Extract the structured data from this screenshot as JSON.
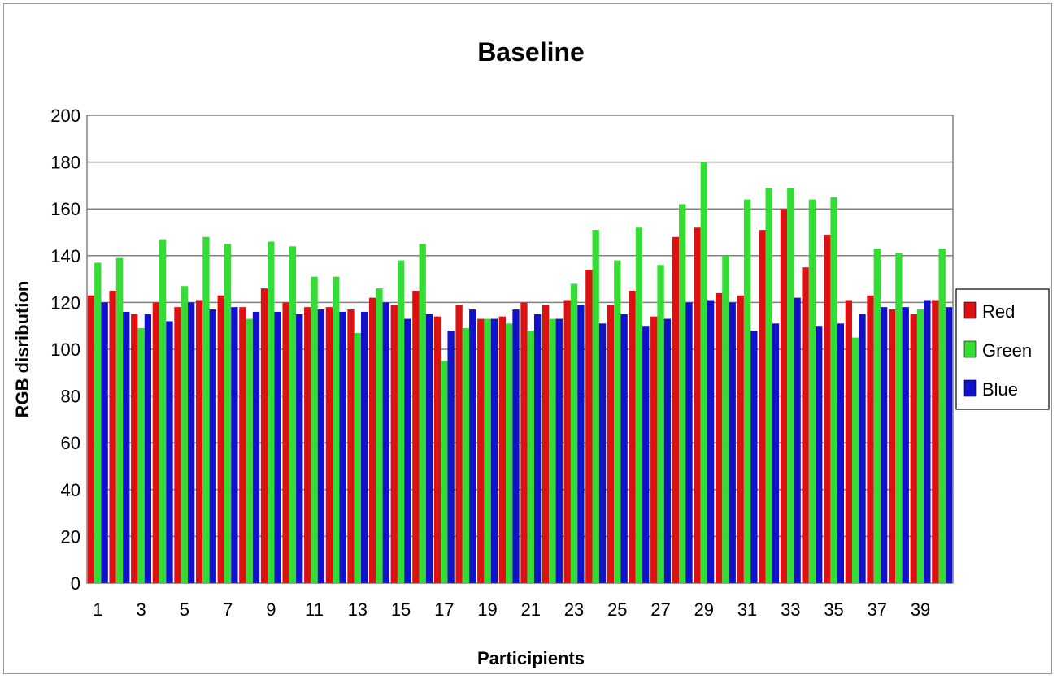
{
  "chart_data": {
    "type": "bar",
    "title": "Baseline",
    "xlabel": "Participients",
    "ylabel": "RGB disribution",
    "ylim": [
      0,
      200
    ],
    "yticks": [
      0,
      20,
      40,
      60,
      80,
      100,
      120,
      140,
      160,
      180,
      200
    ],
    "xtick_labels": [
      "1",
      "3",
      "5",
      "7",
      "9",
      "11",
      "13",
      "15",
      "17",
      "19",
      "21",
      "23",
      "25",
      "27",
      "29",
      "31",
      "33",
      "35",
      "37",
      "39"
    ],
    "categories": [
      1,
      2,
      3,
      4,
      5,
      6,
      7,
      8,
      9,
      10,
      11,
      12,
      13,
      14,
      15,
      16,
      17,
      18,
      19,
      20,
      21,
      22,
      23,
      24,
      25,
      26,
      27,
      28,
      29,
      30,
      31,
      32,
      33,
      34,
      35,
      36,
      37,
      38,
      39,
      40
    ],
    "grid": true,
    "legend_position": "right",
    "series": [
      {
        "name": "Red",
        "color": "#dd1111",
        "values": [
          123,
          125,
          115,
          120,
          118,
          121,
          123,
          118,
          126,
          120,
          118,
          118,
          117,
          122,
          119,
          125,
          114,
          119,
          113,
          114,
          120,
          119,
          121,
          134,
          119,
          125,
          114,
          148,
          152,
          124,
          123,
          151,
          160,
          135,
          149,
          121,
          123,
          117,
          115,
          121
        ]
      },
      {
        "name": "Green",
        "color": "#33dd33",
        "values": [
          137,
          139,
          109,
          147,
          127,
          148,
          145,
          113,
          146,
          144,
          131,
          131,
          107,
          126,
          138,
          145,
          95,
          109,
          113,
          111,
          108,
          113,
          128,
          151,
          138,
          152,
          136,
          162,
          180,
          140,
          164,
          169,
          169,
          164,
          165,
          105,
          143,
          141,
          117,
          143
        ]
      },
      {
        "name": "Blue",
        "color": "#1111cc",
        "values": [
          120,
          116,
          115,
          112,
          120,
          117,
          118,
          116,
          116,
          115,
          117,
          116,
          116,
          120,
          113,
          115,
          108,
          117,
          113,
          117,
          115,
          113,
          119,
          111,
          115,
          110,
          113,
          120,
          121,
          120,
          108,
          111,
          122,
          110,
          111,
          115,
          118,
          118,
          121,
          118
        ]
      }
    ]
  }
}
